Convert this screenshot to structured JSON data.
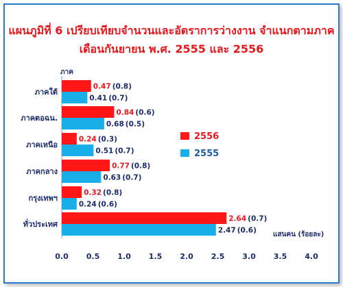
{
  "chart_data": {
    "type": "bar",
    "orientation": "horizontal",
    "title": "แผนภูมิที่ 6  เปรียบเทียบจำนวนและอัตราการว่างงาน  จำแนกตามภาค",
    "subtitle": "เดือนกันยายน พ.ศ. 2555 และ 2556",
    "ylabel": "ภาค",
    "xlabel": "แสนคน (ร้อยละ)",
    "xlim": [
      0,
      4.0
    ],
    "xticks": [
      "0.0",
      "0.5",
      "1.0",
      "1.5",
      "2.0",
      "2.5",
      "3.0",
      "3.5",
      "4.0"
    ],
    "grid": false,
    "legend_position": "right",
    "categories": [
      "ภาคใต้",
      "ภาคตอฉน.",
      "ภาคเหนือ",
      "ภาคกลาง",
      "กรุงเทพฯ",
      "ทั่วประเทศ"
    ],
    "series": [
      {
        "name": "2556",
        "color": "#ff1616",
        "values": [
          0.47,
          0.84,
          0.24,
          0.77,
          0.32,
          2.64
        ],
        "value_labels": [
          "0.47",
          "0.84",
          "0.24",
          "0.77",
          "0.32",
          "2.64"
        ],
        "rate_labels": [
          "(0.8)",
          "(0.6)",
          "(0.3)",
          "(0.8)",
          "(0.8)",
          "(0.7)"
        ]
      },
      {
        "name": "2555",
        "color": "#1aaee8",
        "values": [
          0.41,
          0.68,
          0.51,
          0.63,
          0.24,
          2.47
        ],
        "value_labels": [
          "0.41",
          "0.68",
          "0.51",
          "0.63",
          "0.24",
          "2.47"
        ],
        "rate_labels": [
          "(0.7)",
          "(0.5)",
          "(0.7)",
          "(0.7)",
          "(0.6)",
          "(0.6)"
        ]
      }
    ]
  }
}
